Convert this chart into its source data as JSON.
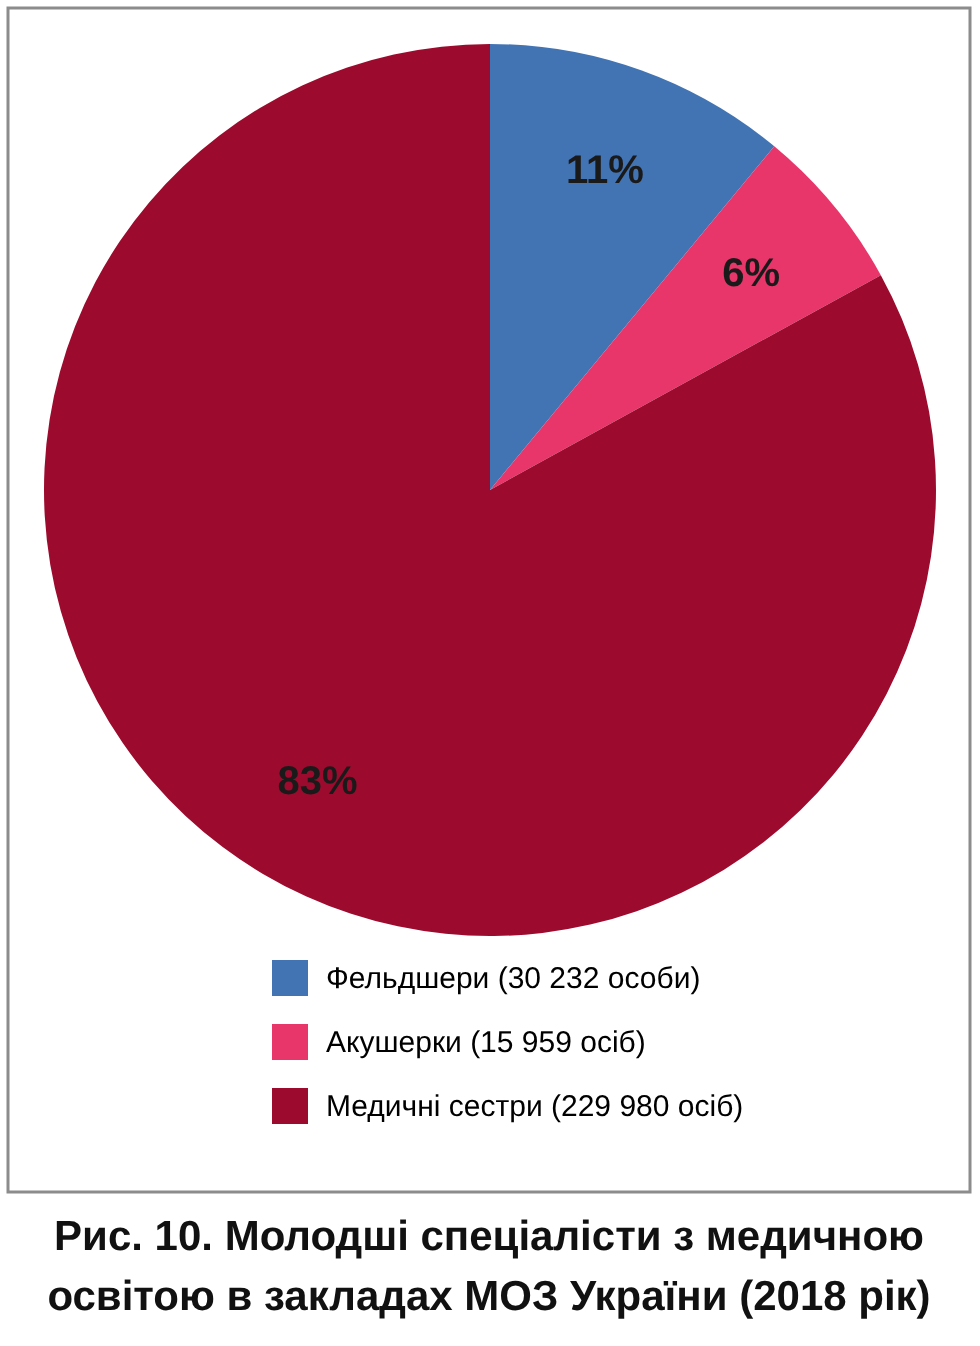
{
  "chart_data": {
    "type": "pie",
    "title": "Рис. 10. Молодші спеціалісти з медичною освітою в закладах МОЗ України (2018 рік)",
    "categories": [
      "Фельдшери (30 232 особи)",
      "Акушерки (15 959 осіб)",
      "Медичні сестри (229 980 осіб)"
    ],
    "values": [
      11,
      6,
      83
    ],
    "colors": [
      "#4273b3",
      "#e8356a",
      "#9c0b2d"
    ],
    "value_labels": [
      "11%",
      "6%",
      "83%"
    ],
    "legend": "bottom"
  }
}
